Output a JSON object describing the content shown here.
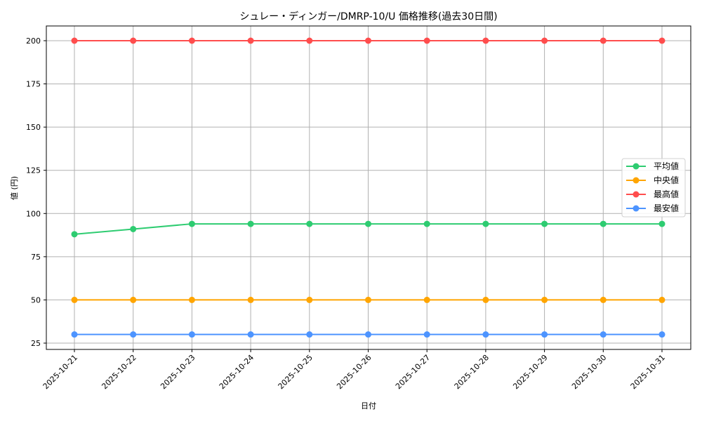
{
  "chart_data": {
    "type": "line",
    "title": "シュレー・ディンガー/DMRP-10/U 価格推移(過去30日間)",
    "xlabel": "日付",
    "ylabel": "値 (円)",
    "x": [
      "2025-10-21",
      "2025-10-22",
      "2025-10-23",
      "2025-10-24",
      "2025-10-25",
      "2025-10-26",
      "2025-10-27",
      "2025-10-28",
      "2025-10-29",
      "2025-10-30",
      "2025-10-31"
    ],
    "yticks": [
      25,
      50,
      75,
      100,
      125,
      150,
      175,
      200
    ],
    "ylim": [
      21.3,
      208.2
    ],
    "grid": true,
    "legend_position": "center right",
    "series": [
      {
        "name": "平均値",
        "color": "#2ecc71",
        "values": [
          88,
          91,
          94,
          94,
          94,
          94,
          94,
          94,
          94,
          94,
          94
        ]
      },
      {
        "name": "中央値",
        "color": "#ffa500",
        "values": [
          50,
          50,
          50,
          50,
          50,
          50,
          50,
          50,
          50,
          50,
          50
        ]
      },
      {
        "name": "最高値",
        "color": "#ff4d4d",
        "values": [
          200,
          200,
          200,
          200,
          200,
          200,
          200,
          200,
          200,
          200,
          200
        ]
      },
      {
        "name": "最安値",
        "color": "#4d94ff",
        "values": [
          30,
          30,
          30,
          30,
          30,
          30,
          30,
          30,
          30,
          30,
          30
        ]
      }
    ]
  }
}
